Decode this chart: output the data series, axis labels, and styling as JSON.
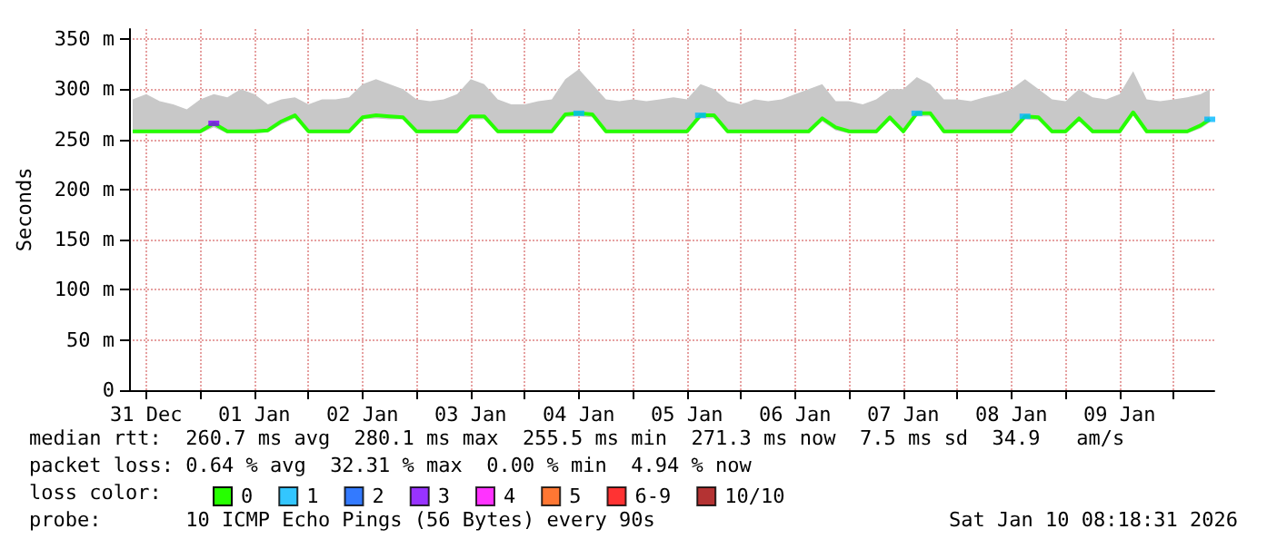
{
  "chart_data": {
    "type": "line",
    "ylabel": "Seconds",
    "legend_title": "loss color:",
    "legend": "bottom",
    "grid": true,
    "xlim": [
      "2025-12-31T08:12",
      "2026-01-10T09:00"
    ],
    "xticks": [
      {
        "value": "2025-12-31T12:00",
        "label": "31 Dec"
      },
      {
        "value": "2026-01-01T00:00",
        "label": null
      },
      {
        "value": "2026-01-01T12:00",
        "label": "01 Jan"
      },
      {
        "value": "2026-01-02T00:00",
        "label": null
      },
      {
        "value": "2026-01-02T12:00",
        "label": "02 Jan"
      },
      {
        "value": "2026-01-03T00:00",
        "label": null
      },
      {
        "value": "2026-01-03T12:00",
        "label": "03 Jan"
      },
      {
        "value": "2026-01-04T00:00",
        "label": null
      },
      {
        "value": "2026-01-04T12:00",
        "label": "04 Jan"
      },
      {
        "value": "2026-01-05T00:00",
        "label": null
      },
      {
        "value": "2026-01-05T12:00",
        "label": "05 Jan"
      },
      {
        "value": "2026-01-06T00:00",
        "label": null
      },
      {
        "value": "2026-01-06T12:00",
        "label": "06 Jan"
      },
      {
        "value": "2026-01-07T00:00",
        "label": null
      },
      {
        "value": "2026-01-07T12:00",
        "label": "07 Jan"
      },
      {
        "value": "2026-01-08T00:00",
        "label": null
      },
      {
        "value": "2026-01-08T12:00",
        "label": "08 Jan"
      },
      {
        "value": "2026-01-09T00:00",
        "label": null
      },
      {
        "value": "2026-01-09T12:00",
        "label": "09 Jan"
      },
      {
        "value": "2026-01-10T00:00",
        "label": null
      }
    ],
    "ylim": [
      0,
      360
    ],
    "yticks": [
      0,
      {
        "value": 50,
        "label": "50 m"
      },
      {
        "value": 100,
        "label": "100 m"
      },
      {
        "value": 150,
        "label": "150 m"
      },
      {
        "value": 200,
        "label": "200 m"
      },
      {
        "value": 250,
        "label": "250 m"
      },
      {
        "value": 300,
        "label": "300 m"
      },
      {
        "value": 350,
        "label": "350 m"
      }
    ],
    "series": [
      {
        "name": "0",
        "color": "#26ff00",
        "x": [
          "2025-12-31T09:00",
          "2025-12-31T12:00",
          "2025-12-31T15:00",
          "2025-12-31T18:00",
          "2025-12-31T21:00",
          "2026-01-01T00:00",
          "2026-01-01T03:00",
          "2026-01-01T06:00",
          "2026-01-01T09:00",
          "2026-01-01T12:00",
          "2026-01-01T15:00",
          "2026-01-01T18:00",
          "2026-01-01T21:00",
          "2026-01-02T00:00",
          "2026-01-02T03:00",
          "2026-01-02T06:00",
          "2026-01-02T09:00",
          "2026-01-02T12:00",
          "2026-01-02T15:00",
          "2026-01-02T18:00",
          "2026-01-02T21:00",
          "2026-01-03T00:00",
          "2026-01-03T03:00",
          "2026-01-03T06:00",
          "2026-01-03T09:00",
          "2026-01-03T12:00",
          "2026-01-03T15:00",
          "2026-01-03T18:00",
          "2026-01-03T21:00",
          "2026-01-04T00:00",
          "2026-01-04T03:00",
          "2026-01-04T06:00",
          "2026-01-04T09:00",
          "2026-01-04T12:00",
          "2026-01-04T15:00",
          "2026-01-04T18:00",
          "2026-01-04T21:00",
          "2026-01-05T00:00",
          "2026-01-05T03:00",
          "2026-01-05T06:00",
          "2026-01-05T09:00",
          "2026-01-05T12:00",
          "2026-01-05T15:00",
          "2026-01-05T18:00",
          "2026-01-05T21:00",
          "2026-01-06T00:00",
          "2026-01-06T03:00",
          "2026-01-06T06:00",
          "2026-01-06T09:00",
          "2026-01-06T12:00",
          "2026-01-06T15:00",
          "2026-01-06T18:00",
          "2026-01-06T21:00",
          "2026-01-07T00:00",
          "2026-01-07T03:00",
          "2026-01-07T06:00",
          "2026-01-07T09:00",
          "2026-01-07T12:00",
          "2026-01-07T15:00",
          "2026-01-07T18:00",
          "2026-01-07T21:00",
          "2026-01-08T00:00",
          "2026-01-08T03:00",
          "2026-01-08T06:00",
          "2026-01-08T09:00",
          "2026-01-08T12:00",
          "2026-01-08T15:00",
          "2026-01-08T18:00",
          "2026-01-08T21:00",
          "2026-01-09T00:00",
          "2026-01-09T03:00",
          "2026-01-09T06:00",
          "2026-01-09T09:00",
          "2026-01-09T12:00",
          "2026-01-09T15:00",
          "2026-01-09T18:00",
          "2026-01-09T21:00",
          "2026-01-10T00:00",
          "2026-01-10T03:00",
          "2026-01-10T06:00",
          "2026-01-10T08:00"
        ],
        "values": [
          258,
          258,
          258,
          258,
          258,
          258,
          266,
          258,
          258,
          258,
          259,
          268,
          274,
          258,
          258,
          258,
          258,
          272,
          274,
          273,
          272,
          258,
          258,
          258,
          258,
          273,
          273,
          258,
          258,
          258,
          258,
          258,
          275,
          276,
          275,
          258,
          258,
          258,
          258,
          258,
          258,
          258,
          274,
          274,
          258,
          258,
          258,
          258,
          258,
          258,
          258,
          271,
          262,
          258,
          258,
          258,
          272,
          258,
          276,
          276,
          258,
          258,
          258,
          258,
          258,
          258,
          273,
          272,
          258,
          258,
          271,
          258,
          258,
          258,
          277,
          258,
          258,
          258,
          258,
          264,
          270
        ],
        "lower": [
          256,
          256,
          256,
          256,
          256,
          256,
          262,
          256,
          256,
          256,
          257,
          265,
          271,
          256,
          256,
          256,
          256,
          270,
          271,
          270,
          270,
          256,
          256,
          256,
          256,
          270,
          270,
          256,
          256,
          256,
          256,
          256,
          272,
          273,
          272,
          256,
          256,
          256,
          256,
          256,
          256,
          256,
          271,
          271,
          256,
          256,
          256,
          256,
          256,
          256,
          256,
          268,
          259,
          256,
          256,
          256,
          269,
          256,
          273,
          273,
          256,
          256,
          256,
          256,
          256,
          256,
          270,
          269,
          256,
          256,
          268,
          256,
          256,
          256,
          274,
          256,
          256,
          256,
          256,
          261,
          267
        ],
        "upper": [
          290,
          295,
          288,
          285,
          280,
          290,
          295,
          292,
          300,
          295,
          285,
          290,
          292,
          285,
          290,
          290,
          292,
          305,
          310,
          305,
          300,
          290,
          288,
          290,
          295,
          310,
          305,
          290,
          285,
          285,
          288,
          290,
          310,
          320,
          305,
          290,
          288,
          290,
          288,
          290,
          292,
          290,
          305,
          300,
          288,
          285,
          290,
          288,
          290,
          295,
          300,
          305,
          288,
          288,
          285,
          290,
          300,
          300,
          312,
          305,
          290,
          290,
          288,
          292,
          295,
          300,
          310,
          300,
          290,
          288,
          300,
          292,
          290,
          295,
          318,
          290,
          288,
          290,
          292,
          295,
          300
        ]
      },
      {
        "name": "1",
        "color": "#00b8ff",
        "type": "scatter",
        "marker": "square",
        "x": [
          "2026-01-04T12:00",
          "2026-01-05T15:00",
          "2026-01-07T15:00",
          "2026-01-08T15:00",
          "2026-01-10T08:00"
        ],
        "values": [
          276,
          274,
          276,
          273,
          270
        ]
      },
      {
        "name": "2",
        "color": "#0059ff",
        "type": "scatter"
      },
      {
        "name": "3",
        "color": "#7e00ff",
        "type": "scatter",
        "marker": "square",
        "x": [
          "2026-01-01T03:00"
        ],
        "values": [
          266
        ]
      },
      {
        "name": "4",
        "color": "#ff00ff",
        "type": "scatter"
      },
      {
        "name": "5",
        "color": "#ff5500",
        "type": "scatter"
      },
      {
        "name": "6-9",
        "color": "#ff0000",
        "type": "scatter"
      },
      {
        "name": "10/10",
        "color": "#a10000",
        "type": "scatter"
      }
    ],
    "annotations": [
      "median rtt:  260.7 ms avg  280.1 ms max  255.5 ms min  271.3 ms now  7.5 ms sd  34.9   am/s",
      "packet loss: 0.64 % avg  32.31 % max  0.00 % min  4.94 % now",
      "probe:       10 ICMP Echo Pings (56 Bytes) every 90s",
      "Sat Jan 10 08:18:31 2026"
    ]
  }
}
